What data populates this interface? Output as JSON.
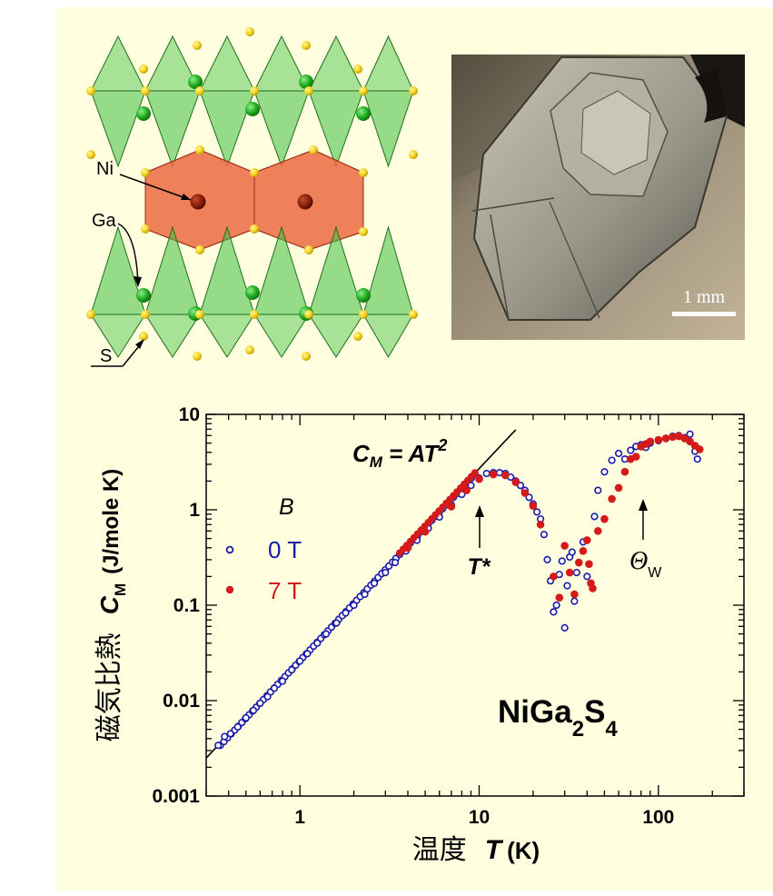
{
  "structure": {
    "labels": {
      "ni": "Ni",
      "ga": "Ga",
      "s": "S"
    },
    "colors": {
      "tetra": "#3fbf3f",
      "octa": "#e8603a",
      "sulfur": "#f2d21a",
      "nickel": "#7a1a08"
    }
  },
  "photo": {
    "scale_label": "1 mm"
  },
  "chart_data": {
    "type": "scatter",
    "xscale": "log",
    "yscale": "log",
    "xlim": [
      0.3,
      300
    ],
    "ylim": [
      0.001,
      10
    ],
    "xticks": [
      "1",
      "10",
      "100"
    ],
    "yticks": [
      "0.001",
      "0.01",
      "0.1",
      "1",
      "10"
    ],
    "ylabel_jp": "磁気比熱",
    "ylabel_sym": "C",
    "ylabel_sub": "M",
    "ylabel_unit": "(J/mole K)",
    "xlabel_jp": "温度",
    "xlabel_sym": "T",
    "xlabel_unit": "(K)",
    "legend_title": "B",
    "grid": false,
    "legend_position": "left",
    "fit_line": {
      "label_main": "C",
      "label_sub": "M",
      "label_rest": " = AT",
      "label_sup": "2",
      "x": [
        0.3,
        16
      ],
      "y": [
        0.0025,
        6.9
      ]
    },
    "annotations": {
      "tstar": {
        "text": "T*",
        "x": 10.5,
        "y": 0.45
      },
      "theta": {
        "text": "Θ",
        "sub": "W",
        "x": 80,
        "y": 0.25
      },
      "compound": {
        "main": "NiGa",
        "sub1": "2",
        "mid": "S",
        "sub2": "4"
      }
    },
    "series": [
      {
        "name": "0 T",
        "color": "#1a1aaa",
        "marker": "open",
        "points": [
          [
            0.35,
            0.0034
          ],
          [
            0.38,
            0.0042
          ],
          [
            0.41,
            0.0045
          ],
          [
            0.45,
            0.0053
          ],
          [
            0.5,
            0.0066
          ],
          [
            0.55,
            0.0079
          ],
          [
            0.6,
            0.0094
          ],
          [
            0.66,
            0.011
          ],
          [
            0.72,
            0.0135
          ],
          [
            0.8,
            0.016
          ],
          [
            0.9,
            0.021
          ],
          [
            1.0,
            0.026
          ],
          [
            1.1,
            0.031
          ],
          [
            1.25,
            0.04
          ],
          [
            1.4,
            0.05
          ],
          [
            1.6,
            0.065
          ],
          [
            1.8,
            0.083
          ],
          [
            2.0,
            0.1
          ],
          [
            2.3,
            0.13
          ],
          [
            2.6,
            0.17
          ],
          [
            3.0,
            0.22
          ],
          [
            3.4,
            0.28
          ],
          [
            3.9,
            0.37
          ],
          [
            4.5,
            0.48
          ],
          [
            5.2,
            0.64
          ],
          [
            6.0,
            0.84
          ],
          [
            7.0,
            1.12
          ],
          [
            8.0,
            1.45
          ],
          [
            9.0,
            1.8
          ],
          [
            10,
            2.15
          ],
          [
            11,
            2.4
          ],
          [
            12,
            2.45
          ],
          [
            13,
            2.45
          ],
          [
            14,
            2.4
          ],
          [
            15,
            2.2
          ],
          [
            16,
            2.0
          ],
          [
            17,
            1.8
          ],
          [
            18,
            1.6
          ],
          [
            19,
            1.35
          ],
          [
            20,
            1.15
          ],
          [
            21,
            0.95
          ],
          [
            22,
            0.8
          ],
          [
            23,
            0.55
          ],
          [
            24,
            0.3
          ],
          [
            25,
            0.18
          ],
          [
            26,
            0.085
          ],
          [
            27,
            0.1
          ],
          [
            28,
            0.21
          ],
          [
            29,
            0.29
          ],
          [
            30,
            0.058
          ],
          [
            31,
            0.16
          ],
          [
            32,
            0.32
          ],
          [
            33,
            0.36
          ],
          [
            34,
            0.11
          ],
          [
            35,
            0.22
          ],
          [
            38,
            0.46
          ],
          [
            40,
            0.2
          ],
          [
            44,
            0.85
          ],
          [
            46,
            1.6
          ],
          [
            50,
            2.5
          ],
          [
            55,
            3.3
          ],
          [
            60,
            3.9
          ],
          [
            65,
            3.4
          ],
          [
            70,
            4.2
          ],
          [
            75,
            4.6
          ],
          [
            80,
            4.8
          ],
          [
            85,
            4.5
          ],
          [
            90,
            5.0
          ],
          [
            100,
            5.3
          ],
          [
            110,
            5.6
          ],
          [
            120,
            5.9
          ],
          [
            130,
            6.0
          ],
          [
            140,
            5.7
          ],
          [
            150,
            6.2
          ],
          [
            160,
            4.1
          ],
          [
            165,
            3.4
          ]
        ]
      },
      {
        "name": "7 T",
        "color": "#d41a1a",
        "marker": "filled",
        "points": [
          [
            4.0,
            0.4
          ],
          [
            5.0,
            0.59
          ],
          [
            7.0,
            1.08
          ],
          [
            8.5,
            1.6
          ],
          [
            10,
            2.1
          ],
          [
            12,
            2.35
          ],
          [
            14,
            2.3
          ],
          [
            16,
            1.95
          ],
          [
            18,
            1.5
          ],
          [
            20,
            1.1
          ],
          [
            22,
            0.7
          ],
          [
            26,
            0.2
          ],
          [
            28,
            0.12
          ],
          [
            30,
            0.42
          ],
          [
            32,
            0.22
          ],
          [
            34,
            0.13
          ],
          [
            36,
            0.28
          ],
          [
            38,
            0.37
          ],
          [
            40,
            0.48
          ],
          [
            41,
            0.27
          ],
          [
            42,
            0.17
          ],
          [
            43,
            0.15
          ],
          [
            46,
            0.6
          ],
          [
            50,
            0.8
          ],
          [
            55,
            1.3
          ],
          [
            60,
            1.7
          ],
          [
            65,
            2.5
          ],
          [
            70,
            3.4
          ],
          [
            75,
            3.6
          ],
          [
            80,
            4.6
          ],
          [
            85,
            4.9
          ],
          [
            90,
            5.2
          ],
          [
            100,
            5.4
          ],
          [
            110,
            5.6
          ],
          [
            120,
            5.8
          ],
          [
            130,
            5.9
          ],
          [
            140,
            5.6
          ],
          [
            150,
            5.2
          ],
          [
            160,
            4.7
          ],
          [
            170,
            4.3
          ]
        ]
      }
    ]
  }
}
